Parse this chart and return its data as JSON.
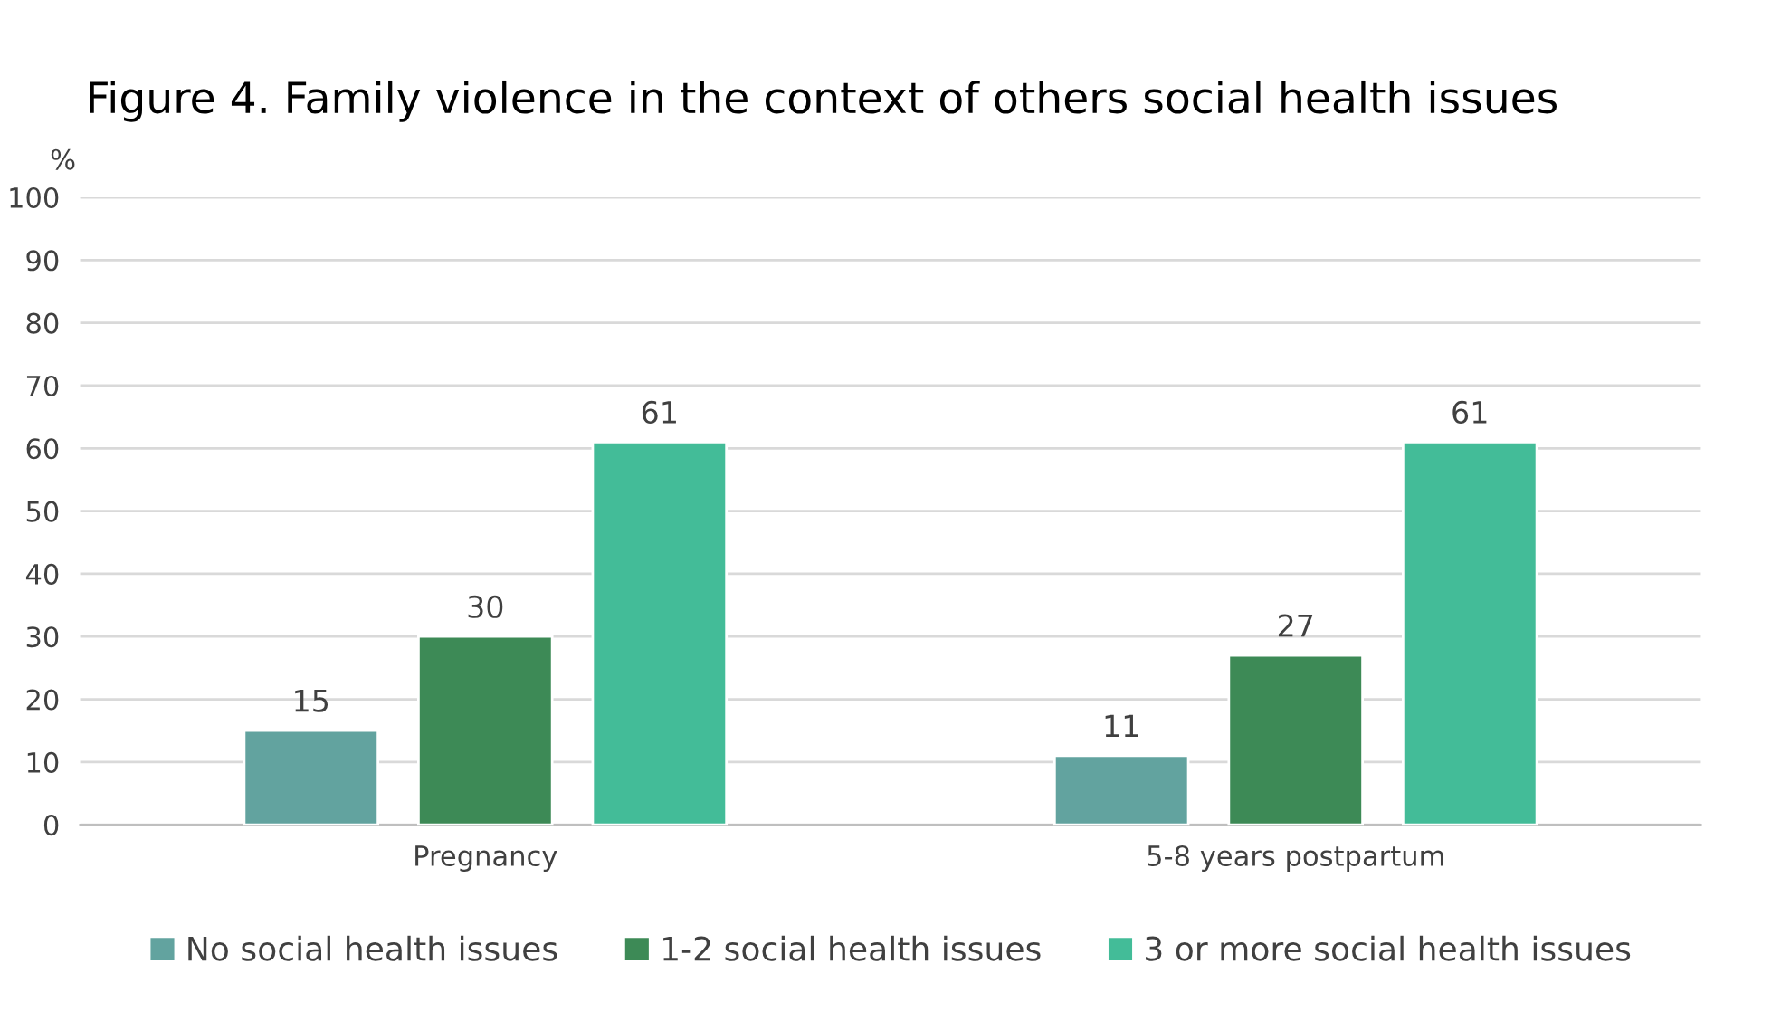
{
  "chart_data": {
    "type": "bar",
    "title": "Figure 4. Family violence in the context of others social health issues",
    "ylabel": "%",
    "categories": [
      "Pregnancy",
      "5-8 years postpartum"
    ],
    "series": [
      {
        "name": "No social health issues",
        "color": "#62a39f",
        "values": [
          15,
          11
        ]
      },
      {
        "name": "1-2 social health issues",
        "color": "#3d8a56",
        "values": [
          30,
          27
        ]
      },
      {
        "name": "3 or more social health issues",
        "color": "#43bc98",
        "values": [
          61,
          61
        ]
      }
    ],
    "ylim": [
      0,
      100
    ],
    "yticks": [
      0,
      10,
      20,
      30,
      40,
      50,
      60,
      70,
      80,
      90,
      100
    ],
    "grid": "y",
    "legend": "bottom",
    "data_labels": true
  }
}
